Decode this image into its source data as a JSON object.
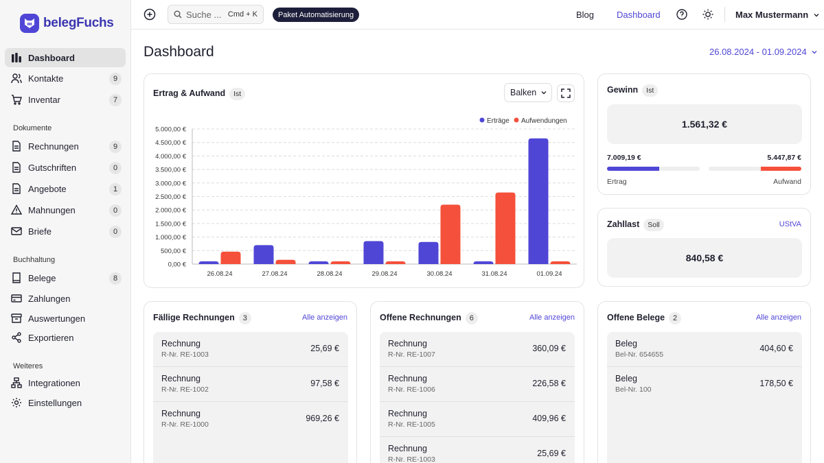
{
  "brand": {
    "name": "belegFuchs"
  },
  "sidebar": {
    "items": [
      {
        "label": "Dashboard",
        "icon": "bar-chart-icon",
        "active": true
      },
      {
        "label": "Kontakte",
        "icon": "users-icon",
        "badge": "9"
      },
      {
        "label": "Inventar",
        "icon": "cart-icon",
        "badge": "7"
      }
    ],
    "sections": [
      {
        "label": "Dokumente",
        "items": [
          {
            "label": "Rechnungen",
            "icon": "file-icon",
            "badge": "9"
          },
          {
            "label": "Gutschriften",
            "icon": "file-icon",
            "badge": "0"
          },
          {
            "label": "Angebote",
            "icon": "file-icon",
            "badge": "1"
          },
          {
            "label": "Mahnungen",
            "icon": "warning-icon",
            "badge": "0"
          },
          {
            "label": "Briefe",
            "icon": "mail-icon",
            "badge": "0"
          }
        ]
      },
      {
        "label": "Buchhaltung",
        "items": [
          {
            "label": "Belege",
            "icon": "book-icon",
            "badge": "8"
          },
          {
            "label": "Zahlungen",
            "icon": "credit-card-icon"
          },
          {
            "label": "Auswertungen",
            "icon": "archive-icon"
          },
          {
            "label": "Exportieren",
            "icon": "share-icon"
          }
        ]
      },
      {
        "label": "Weiteres",
        "items": [
          {
            "label": "Integrationen",
            "icon": "sitemap-icon"
          },
          {
            "label": "Einstellungen",
            "icon": "gear-icon"
          }
        ]
      }
    ]
  },
  "topbar": {
    "search_placeholder": "Suche ...",
    "shortcut": "Cmd + K",
    "paket_label": "Paket Automatisierung",
    "blog": "Blog",
    "dashboard": "Dashboard",
    "user": "Max Mustermann"
  },
  "page": {
    "title": "Dashboard",
    "date_range": "26.08.2024 - 01.09.2024"
  },
  "chart_card": {
    "title": "Ertrag & Aufwand",
    "tag": "Ist",
    "select_value": "Balken"
  },
  "chart_data": {
    "type": "bar",
    "categories": [
      "26.08.24",
      "27.08.24",
      "28.08.24",
      "29.08.24",
      "30.08.24",
      "31.08.24",
      "01.09.24"
    ],
    "series": [
      {
        "name": "Erträge",
        "color": "#4f46d6",
        "values": [
          100,
          700,
          100,
          850,
          820,
          100,
          4650
        ]
      },
      {
        "name": "Aufwendungen",
        "color": "#f5503b",
        "values": [
          460,
          160,
          100,
          100,
          2200,
          2650,
          100
        ]
      }
    ],
    "yticks": [
      "0,00 €",
      "500,00 €",
      "1.000,00 €",
      "1.500,00 €",
      "2.000,00 €",
      "2.500,00 €",
      "3.000,00 €",
      "3.500,00 €",
      "4.000,00 €",
      "4.500,00 €",
      "5.000,00 €"
    ],
    "ylim": [
      0,
      5000
    ],
    "legend_position": "top-right",
    "grid": true
  },
  "gewinn": {
    "title": "Gewinn",
    "tag": "Ist",
    "value": "1.561,32 €",
    "ertrag_value": "7.009,19 €",
    "aufwand_value": "5.447,87 €",
    "ertrag_label": "Ertrag",
    "aufwand_label": "Aufwand",
    "ertrag_fill": 0.56,
    "aufwand_fill": 0.44
  },
  "zahllast": {
    "title": "Zahllast",
    "tag": "Soll",
    "link": "UStVA",
    "value": "840,58 €"
  },
  "faellige": {
    "title": "Fällige Rechnungen",
    "count": "3",
    "link": "Alle anzeigen",
    "rows": [
      {
        "title": "Rechnung",
        "sub": "R-Nr. RE-1003",
        "amount": "25,69 €"
      },
      {
        "title": "Rechnung",
        "sub": "R-Nr. RE-1002",
        "amount": "97,58 €"
      },
      {
        "title": "Rechnung",
        "sub": "R-Nr. RE-1000",
        "amount": "969,26 €"
      }
    ]
  },
  "offene_rechnungen": {
    "title": "Offene Rechnungen",
    "count": "6",
    "link": "Alle anzeigen",
    "rows": [
      {
        "title": "Rechnung",
        "sub": "R-Nr. RE-1007",
        "amount": "360,09 €"
      },
      {
        "title": "Rechnung",
        "sub": "R-Nr. RE-1006",
        "amount": "226,58 €"
      },
      {
        "title": "Rechnung",
        "sub": "R-Nr. RE-1005",
        "amount": "409,96 €"
      },
      {
        "title": "Rechnung",
        "sub": "R-Nr. RE-1003",
        "amount": "25,69 €"
      }
    ]
  },
  "offene_belege": {
    "title": "Offene Belege",
    "count": "2",
    "link": "Alle anzeigen",
    "rows": [
      {
        "title": "Beleg",
        "sub": "Bel-Nr. 654655",
        "amount": "404,60 €"
      },
      {
        "title": "Beleg",
        "sub": "Bel-Nr. 100",
        "amount": "178,50 €"
      }
    ]
  }
}
